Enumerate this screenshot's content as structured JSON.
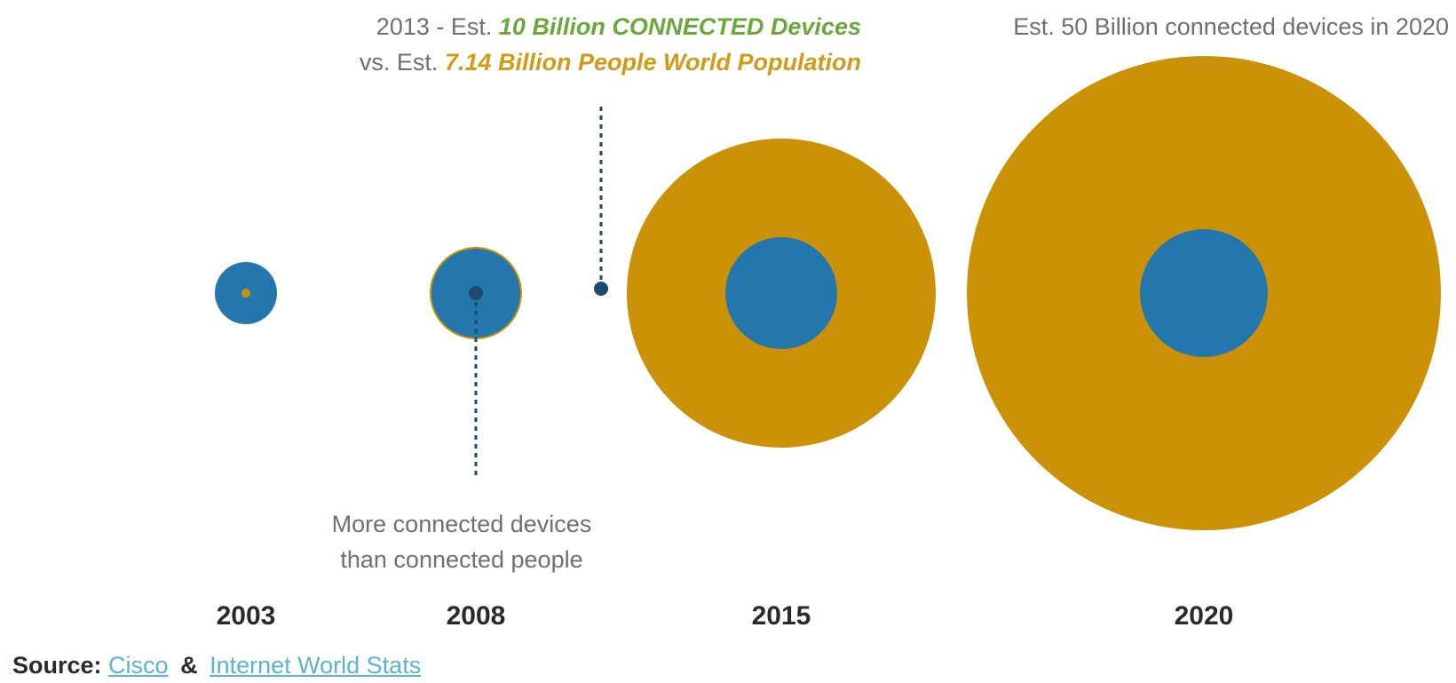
{
  "colors": {
    "people": "#2477ad",
    "devices": "#cc9207",
    "marker": "#1d4a6e",
    "devices_text": "#6aa83a",
    "population_text": "#d49a15",
    "annotation_text": "#6f6f6f",
    "link": "#5cb3d3"
  },
  "chart_data": {
    "type": "bubble",
    "title": "",
    "categories": [
      "2003",
      "2008",
      "2015",
      "2020"
    ],
    "series": [],
    "annotations": {
      "y2013": {
        "line1_prefix": "2013 - Est. ",
        "line1_highlight": "10 Billion CONNECTED Devices",
        "line2_prefix": "vs. Est. ",
        "line2_highlight": "7.14 Billion People World Population"
      },
      "y2020": "Est. 50 Billion connected devices in 2020",
      "y2008_line1": "More connected devices",
      "y2008_line2": "than connected people"
    }
  },
  "source": {
    "label": "Source:",
    "link1": "Cisco",
    "amp": "&",
    "link2": "Internet World Stats"
  }
}
